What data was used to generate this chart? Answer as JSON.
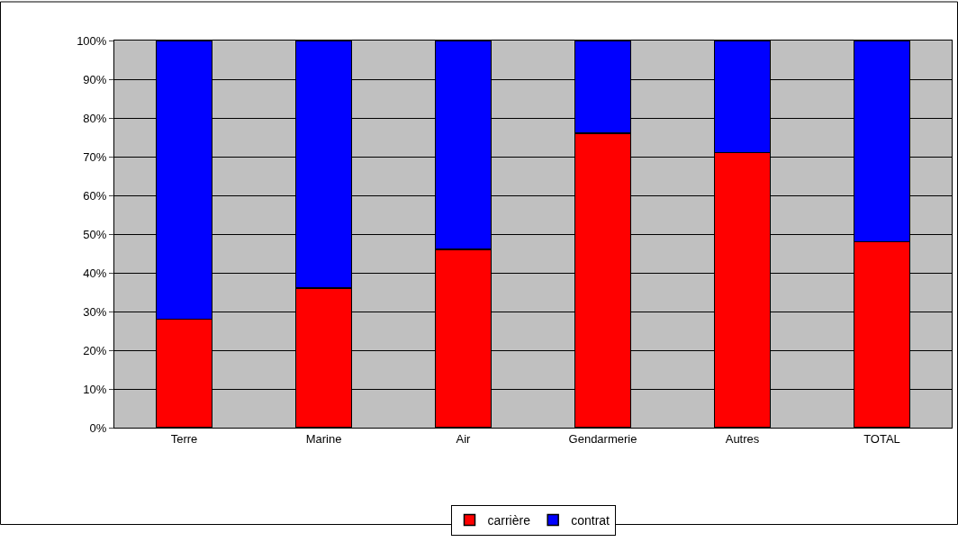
{
  "chart_data": {
    "type": "bar",
    "stacked": true,
    "categories": [
      "Terre",
      "Marine",
      "Air",
      "Gendarmerie",
      "Autres",
      "TOTAL"
    ],
    "series": [
      {
        "name": "carrière",
        "color": "#ff0000",
        "values": [
          28,
          36,
          46,
          76,
          71,
          48
        ]
      },
      {
        "name": "contrat",
        "color": "#0000ff",
        "values": [
          72,
          64,
          54,
          24,
          29,
          52
        ]
      }
    ],
    "ylim": [
      0,
      100
    ],
    "yticks": [
      {
        "value": 0,
        "label": "0%"
      },
      {
        "value": 10,
        "label": "10%"
      },
      {
        "value": 20,
        "label": "20%"
      },
      {
        "value": 30,
        "label": "30%"
      },
      {
        "value": 40,
        "label": "40%"
      },
      {
        "value": 50,
        "label": "50%"
      },
      {
        "value": 60,
        "label": "60%"
      },
      {
        "value": 70,
        "label": "70%"
      },
      {
        "value": 80,
        "label": "80%"
      },
      {
        "value": 90,
        "label": "90%"
      },
      {
        "value": 100,
        "label": "100%"
      }
    ],
    "grid": "y",
    "legend": "bottom"
  }
}
